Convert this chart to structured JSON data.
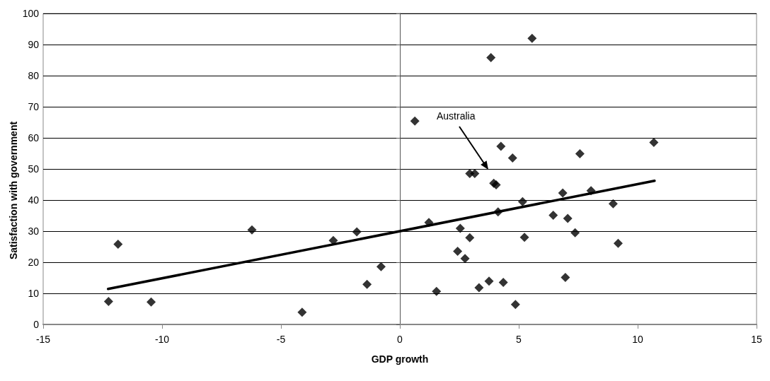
{
  "chart_data": {
    "type": "scatter",
    "xlabel": "GDP growth",
    "ylabel": "Satisfaction with government",
    "xlim": [
      -15,
      15
    ],
    "xticks": [
      -15,
      -10,
      -5,
      0,
      5,
      10,
      15
    ],
    "ylim": [
      0,
      100
    ],
    "yticks": [
      0,
      10,
      20,
      30,
      40,
      50,
      60,
      70,
      80,
      90,
      100
    ],
    "grid": "y",
    "marker": "diamond",
    "annotations": [
      "Australia"
    ],
    "series": [
      {
        "color": "#000000",
        "x": [
          -12.25,
          -11.85,
          -10.46,
          -6.22,
          -4.11,
          -2.8,
          -1.81,
          -1.38,
          -0.79,
          0.63,
          1.22,
          1.54,
          2.43,
          2.54,
          2.74,
          2.94,
          2.94,
          3.15,
          3.33,
          3.75,
          3.83,
          3.95,
          4.05,
          4.13,
          4.25,
          4.35,
          4.74,
          4.86,
          5.16,
          5.24,
          5.56,
          6.45,
          6.85,
          6.96,
          7.06,
          7.37,
          7.57,
          8.04,
          8.97,
          9.18,
          10.68
        ],
        "values": [
          7.4,
          25.8,
          7.2,
          30.4,
          3.9,
          27,
          29.8,
          12.9,
          18.6,
          65.4,
          32.8,
          10.6,
          23.5,
          30.9,
          21.2,
          27.9,
          48.5,
          48.5,
          11.8,
          13.9,
          85.8,
          45.4,
          44.9,
          36.2,
          57.3,
          13.5,
          53.5,
          6.4,
          39.5,
          28,
          92,
          35.1,
          42.3,
          15.1,
          34.1,
          29.5,
          54.9,
          43,
          38.8,
          26.1,
          58.5
        ]
      },
      {
        "type": "line",
        "color": "#000000",
        "x": [
          -12.27,
          10.71
        ],
        "values": [
          11.4,
          46.2
        ],
        "marker": "none",
        "line_style": "solid"
      }
    ]
  }
}
